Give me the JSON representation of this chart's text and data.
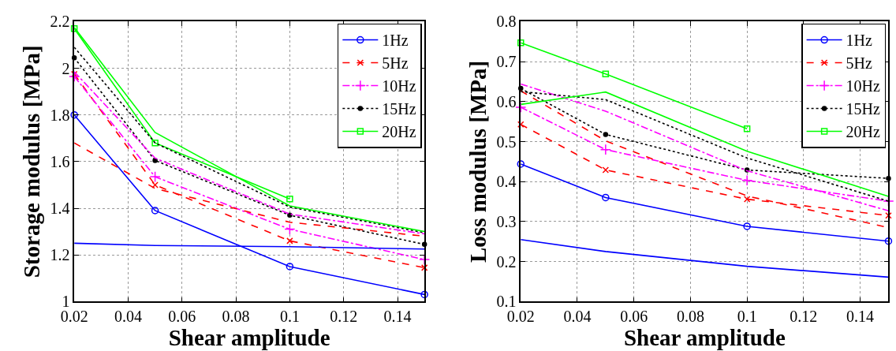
{
  "chart_data": [
    {
      "type": "line",
      "xlabel": "Shear amplitude",
      "ylabel": "Storage modulus [MPa]",
      "x": [
        0.02,
        0.05,
        0.1,
        0.15
      ],
      "xlim": [
        0.02,
        0.15
      ],
      "xticks": [
        0.02,
        0.04,
        0.06,
        0.08,
        0.1,
        0.12,
        0.14
      ],
      "ylim": [
        1,
        2.2
      ],
      "yticks": [
        1,
        1.2,
        1.4,
        1.6,
        1.8,
        2,
        2.2
      ],
      "grid": true,
      "legend": "top right",
      "series": [
        {
          "name": "1Hz",
          "color": "#0000ff",
          "marker": "circle",
          "line_style": "solid",
          "values": [
            1.8,
            1.39,
            1.15,
            1.03
          ]
        },
        {
          "name": "5Hz",
          "color": "#ff0000",
          "marker": "x",
          "line_style": "dashed",
          "values": [
            1.975,
            1.5,
            1.26,
            1.145
          ]
        },
        {
          "name": "10Hz",
          "color": "#ff00ff",
          "marker": "cross",
          "line_style": "dashdot",
          "values": [
            1.965,
            1.535,
            1.31,
            1.18
          ]
        },
        {
          "name": "15Hz",
          "color": "#000000",
          "marker": "point",
          "line_style": "dotted",
          "values": [
            2.045,
            1.605,
            1.37,
            1.245
          ]
        },
        {
          "name": "20Hz",
          "color": "#00ff00",
          "marker": "square",
          "line_style": "solid",
          "values": [
            2.17,
            1.68,
            1.44,
            null
          ]
        },
        {
          "color": "#0000ff",
          "marker": "none",
          "line_style": "solid",
          "values": [
            1.25,
            1.24,
            1.235,
            1.225
          ]
        },
        {
          "color": "#ff0000",
          "marker": "none",
          "line_style": "dashed",
          "values": [
            1.68,
            1.485,
            1.34,
            1.28
          ]
        },
        {
          "color": "#ff00ff",
          "marker": "none",
          "line_style": "dashdot",
          "values": [
            1.985,
            1.615,
            1.375,
            1.29
          ]
        },
        {
          "color": "#000000",
          "marker": "none",
          "line_style": "dotted",
          "values": [
            2.09,
            1.68,
            1.405,
            1.295
          ]
        },
        {
          "color": "#00ff00",
          "marker": "none",
          "line_style": "solid",
          "values": [
            2.175,
            1.725,
            1.41,
            1.3
          ]
        }
      ]
    },
    {
      "type": "line",
      "xlabel": "Shear amplitude",
      "ylabel": "Loss modulus [MPa]",
      "x": [
        0.02,
        0.05,
        0.1,
        0.15
      ],
      "xlim": [
        0.02,
        0.15
      ],
      "xticks": [
        0.02,
        0.04,
        0.06,
        0.08,
        0.1,
        0.12,
        0.14
      ],
      "ylim": [
        0.1,
        0.8
      ],
      "yticks": [
        0.1,
        0.2,
        0.3,
        0.4,
        0.5,
        0.6,
        0.7,
        0.8
      ],
      "grid": true,
      "legend": "top right",
      "series": [
        {
          "name": "1Hz",
          "color": "#0000ff",
          "marker": "circle",
          "line_style": "solid",
          "values": [
            0.444,
            0.36,
            0.288,
            0.251
          ]
        },
        {
          "name": "5Hz",
          "color": "#ff0000",
          "marker": "x",
          "line_style": "dashed",
          "values": [
            0.543,
            0.429,
            0.356,
            0.315
          ]
        },
        {
          "name": "10Hz",
          "color": "#ff00ff",
          "marker": "cross",
          "line_style": "dashdot",
          "values": [
            0.586,
            0.48,
            0.403,
            0.351
          ]
        },
        {
          "name": "15Hz",
          "color": "#000000",
          "marker": "point",
          "line_style": "dotted",
          "values": [
            0.633,
            0.518,
            0.429,
            0.408
          ]
        },
        {
          "name": "20Hz",
          "color": "#00ff00",
          "marker": "square",
          "line_style": "solid",
          "values": [
            0.747,
            0.669,
            0.532,
            null
          ]
        },
        {
          "color": "#0000ff",
          "marker": "none",
          "line_style": "solid",
          "values": [
            0.255,
            0.225,
            0.188,
            0.161
          ]
        },
        {
          "color": "#ff0000",
          "marker": "none",
          "line_style": "dashed",
          "values": [
            0.627,
            0.502,
            0.364,
            0.285
          ]
        },
        {
          "color": "#ff00ff",
          "marker": "none",
          "line_style": "dashdot",
          "values": [
            0.644,
            0.576,
            0.427,
            0.327
          ]
        },
        {
          "color": "#000000",
          "marker": "none",
          "line_style": "dotted",
          "values": [
            0.625,
            0.605,
            0.459,
            0.351
          ]
        },
        {
          "color": "#00ff00",
          "marker": "none",
          "line_style": "solid",
          "values": [
            0.593,
            0.624,
            0.476,
            0.363
          ]
        }
      ]
    }
  ]
}
